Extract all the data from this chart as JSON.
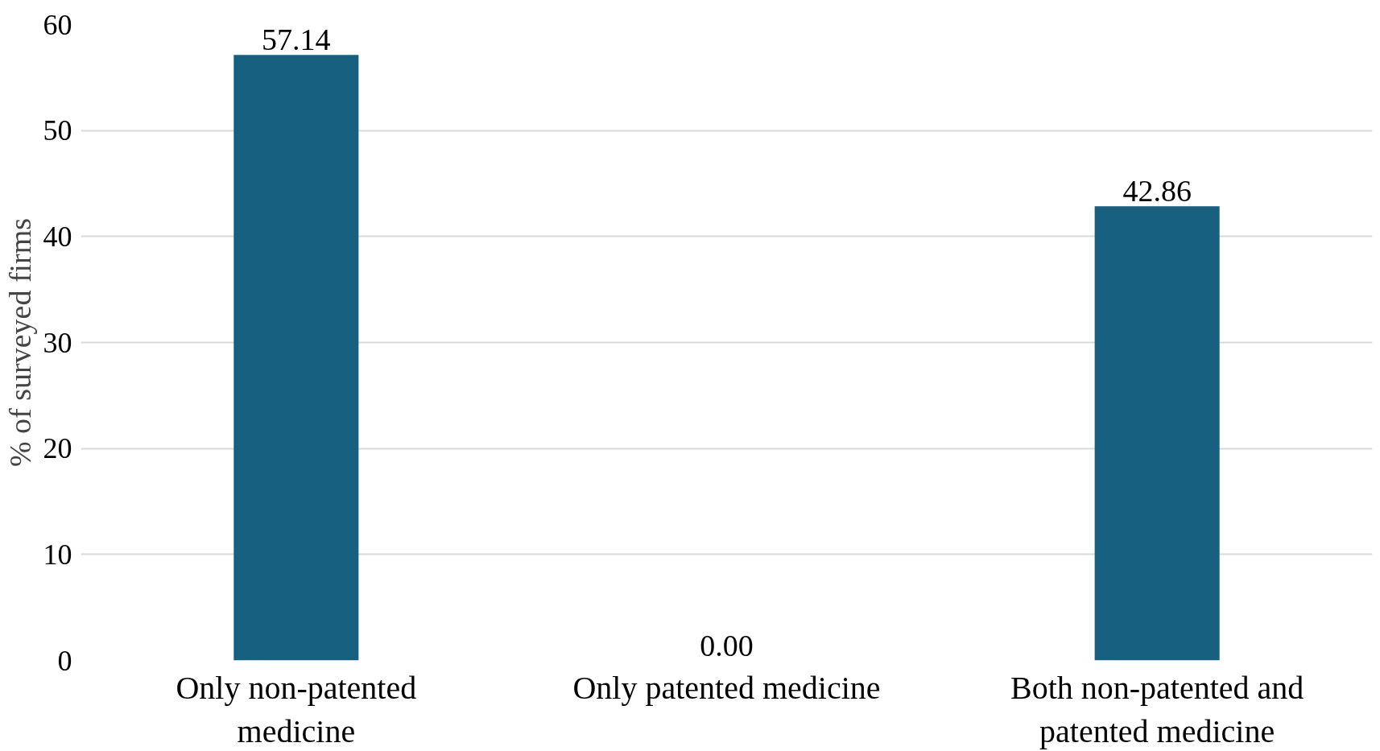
{
  "chart_data": {
    "type": "bar",
    "ylabel": "% of surveyed firms",
    "categories": [
      "Only non-patented medicine",
      "Only patented medicine",
      "Both non-patented and patented medicine"
    ],
    "values": [
      57.14,
      0,
      42.86
    ],
    "value_labels": [
      "57.14",
      "0.00",
      "42.86"
    ],
    "color": "#17607f",
    "ylim": [
      0,
      60
    ],
    "yticks": [
      0,
      10,
      20,
      30,
      40,
      50,
      60
    ],
    "grid": "y"
  }
}
